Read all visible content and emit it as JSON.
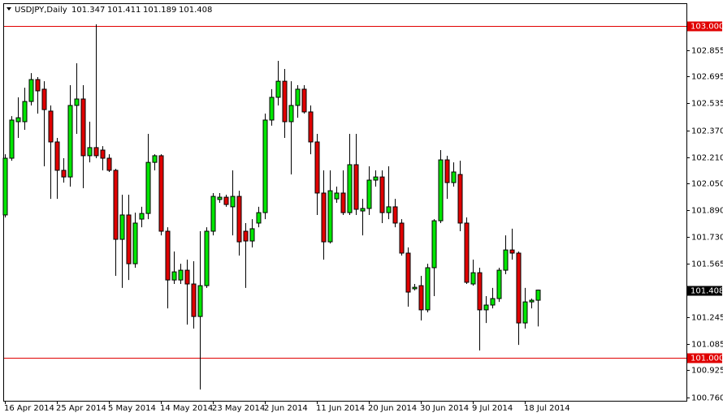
{
  "chart_data": {
    "type": "candlestick",
    "title": "USDJPY,Daily",
    "up_color": "#00e600",
    "down_color": "#e00000",
    "level_color": "#e00000",
    "categories": [
      "16 Apr 2014",
      null,
      null,
      null,
      null,
      null,
      null,
      null,
      "25 Apr 2014",
      null,
      null,
      null,
      null,
      null,
      null,
      null,
      "5 May 2014",
      null,
      null,
      null,
      null,
      null,
      null,
      null,
      "14 May 2014",
      null,
      null,
      null,
      null,
      null,
      null,
      null,
      "23 May 2014",
      null,
      null,
      null,
      null,
      null,
      null,
      null,
      "2 Jun 2014",
      null,
      null,
      null,
      null,
      null,
      null,
      null,
      "11 Jun 2014",
      null,
      null,
      null,
      null,
      null,
      null,
      null,
      "20 Jun 2014",
      null,
      null,
      null,
      null,
      null,
      null,
      null,
      "30 Jun 2014",
      null,
      null,
      null,
      null,
      null,
      null,
      null,
      "9 Jul 2014",
      null,
      null,
      null,
      null,
      null,
      null,
      null,
      "18 Jul 2014",
      null,
      null
    ],
    "open": [
      101.861,
      102.203,
      102.423,
      102.423,
      102.545,
      102.677,
      102.619,
      102.487,
      102.301,
      102.13,
      102.09,
      102.521,
      102.56,
      102.218,
      102.267,
      102.252,
      102.203,
      102.13,
      101.714,
      101.861,
      101.567,
      101.836,
      101.87,
      102.178,
      102.218,
      101.763,
      101.469,
      101.469,
      101.528,
      101.445,
      101.249,
      101.435,
      101.763,
      101.954,
      101.968,
      101.91,
      101.973,
      101.763,
      101.704,
      101.812,
      101.875,
      102.433,
      102.57,
      102.667,
      102.423,
      102.521,
      102.619,
      102.482,
      102.301,
      101.993,
      101.699,
      101.958,
      101.993,
      101.875,
      102.164,
      101.885,
      101.9,
      102.071,
      102.09,
      101.875,
      101.91,
      101.812,
      101.631,
      101.416,
      101.435,
      101.289,
      101.543,
      101.826,
      102.193,
      102.056,
      102.105,
      101.812,
      101.445,
      101.513,
      101.289,
      101.318,
      101.357,
      101.528,
      101.65,
      101.631,
      101.21,
      101.337,
      101.347
    ],
    "high": [
      102.227,
      102.457,
      102.57,
      102.628,
      102.716,
      102.692,
      102.667,
      102.521,
      102.325,
      102.203,
      102.643,
      102.775,
      102.643,
      102.423,
      103.01,
      102.276,
      102.227,
      102.139,
      101.983,
      101.983,
      101.875,
      101.91,
      102.35,
      102.227,
      102.227,
      101.787,
      101.641,
      101.567,
      101.592,
      101.582,
      101.763,
      101.787,
      101.993,
      101.993,
      101.983,
      102.13,
      102.007,
      101.812,
      101.836,
      101.91,
      102.472,
      102.619,
      102.79,
      102.741,
      102.667,
      102.643,
      102.643,
      102.521,
      102.35,
      102.13,
      102.13,
      102.032,
      102.13,
      102.35,
      102.35,
      101.958,
      102.154,
      102.13,
      102.13,
      102.154,
      101.958,
      101.836,
      101.665,
      101.445,
      101.494,
      101.567,
      101.836,
      102.252,
      102.218,
      102.178,
      102.188,
      101.846,
      101.592,
      101.543,
      101.372,
      101.421,
      101.543,
      101.738,
      101.778,
      101.641,
      101.421,
      101.357,
      101.411
    ],
    "low": [
      101.846,
      102.188,
      102.325,
      102.374,
      102.521,
      102.472,
      102.154,
      101.958,
      101.958,
      102.056,
      102.032,
      102.35,
      102.022,
      102.178,
      102.203,
      102.13,
      102.12,
      101.494,
      101.421,
      101.469,
      101.543,
      101.787,
      101.836,
      102.13,
      101.738,
      101.298,
      101.445,
      101.445,
      101.2,
      101.176,
      100.809,
      101.421,
      101.738,
      101.934,
      101.91,
      101.738,
      101.616,
      101.421,
      101.665,
      101.787,
      101.836,
      102.399,
      102.521,
      102.325,
      102.105,
      102.447,
      102.472,
      102.227,
      101.861,
      101.592,
      101.689,
      101.934,
      101.861,
      101.861,
      101.861,
      101.738,
      101.861,
      102.032,
      101.812,
      101.836,
      101.787,
      101.616,
      101.308,
      101.406,
      101.225,
      101.274,
      101.372,
      101.812,
      101.958,
      102.032,
      101.763,
      101.445,
      101.435,
      101.044,
      101.21,
      101.298,
      101.337,
      101.504,
      101.592,
      101.078,
      101.176,
      101.298,
      101.189
    ],
    "close": [
      102.203,
      102.433,
      102.447,
      102.545,
      102.677,
      102.609,
      102.496,
      102.301,
      102.13,
      102.09,
      102.521,
      102.56,
      102.218,
      102.267,
      102.218,
      102.203,
      102.13,
      101.714,
      101.861,
      101.567,
      101.812,
      101.87,
      102.178,
      102.218,
      101.763,
      101.469,
      101.518,
      101.528,
      101.445,
      101.249,
      101.435,
      101.763,
      101.973,
      101.968,
      101.924,
      101.973,
      101.699,
      101.704,
      101.778,
      101.875,
      102.433,
      102.57,
      102.667,
      102.423,
      102.521,
      102.619,
      102.482,
      102.301,
      101.993,
      101.699,
      102.007,
      101.993,
      101.875,
      102.164,
      101.895,
      101.9,
      102.071,
      102.09,
      101.875,
      101.91,
      101.812,
      101.631,
      101.396,
      101.425,
      101.289,
      101.543,
      101.826,
      102.193,
      102.056,
      102.12,
      101.812,
      101.455,
      101.513,
      101.289,
      101.318,
      101.357,
      101.528,
      101.65,
      101.631,
      101.21,
      101.337,
      101.347,
      101.408
    ],
    "ylim": [
      100.741,
      103.137
    ],
    "yticks": [
      {
        "value": 102.855,
        "label": "102.855"
      },
      {
        "value": 102.695,
        "label": "102.695"
      },
      {
        "value": 102.535,
        "label": "102.535"
      },
      {
        "value": 102.37,
        "label": "102.370"
      },
      {
        "value": 102.21,
        "label": "102.210"
      },
      {
        "value": 102.05,
        "label": "102.050"
      },
      {
        "value": 101.89,
        "label": "101.890"
      },
      {
        "value": 101.73,
        "label": "101.730"
      },
      {
        "value": 101.565,
        "label": "101.565"
      },
      {
        "value": 101.245,
        "label": "101.245"
      },
      {
        "value": 101.085,
        "label": "101.085"
      },
      {
        "value": 100.925,
        "label": "100.925"
      },
      {
        "value": 100.76,
        "label": "100.760"
      }
    ],
    "levels": [
      {
        "value": 103,
        "label": "103.000"
      },
      {
        "value": 101,
        "label": "101.000"
      }
    ]
  }
}
